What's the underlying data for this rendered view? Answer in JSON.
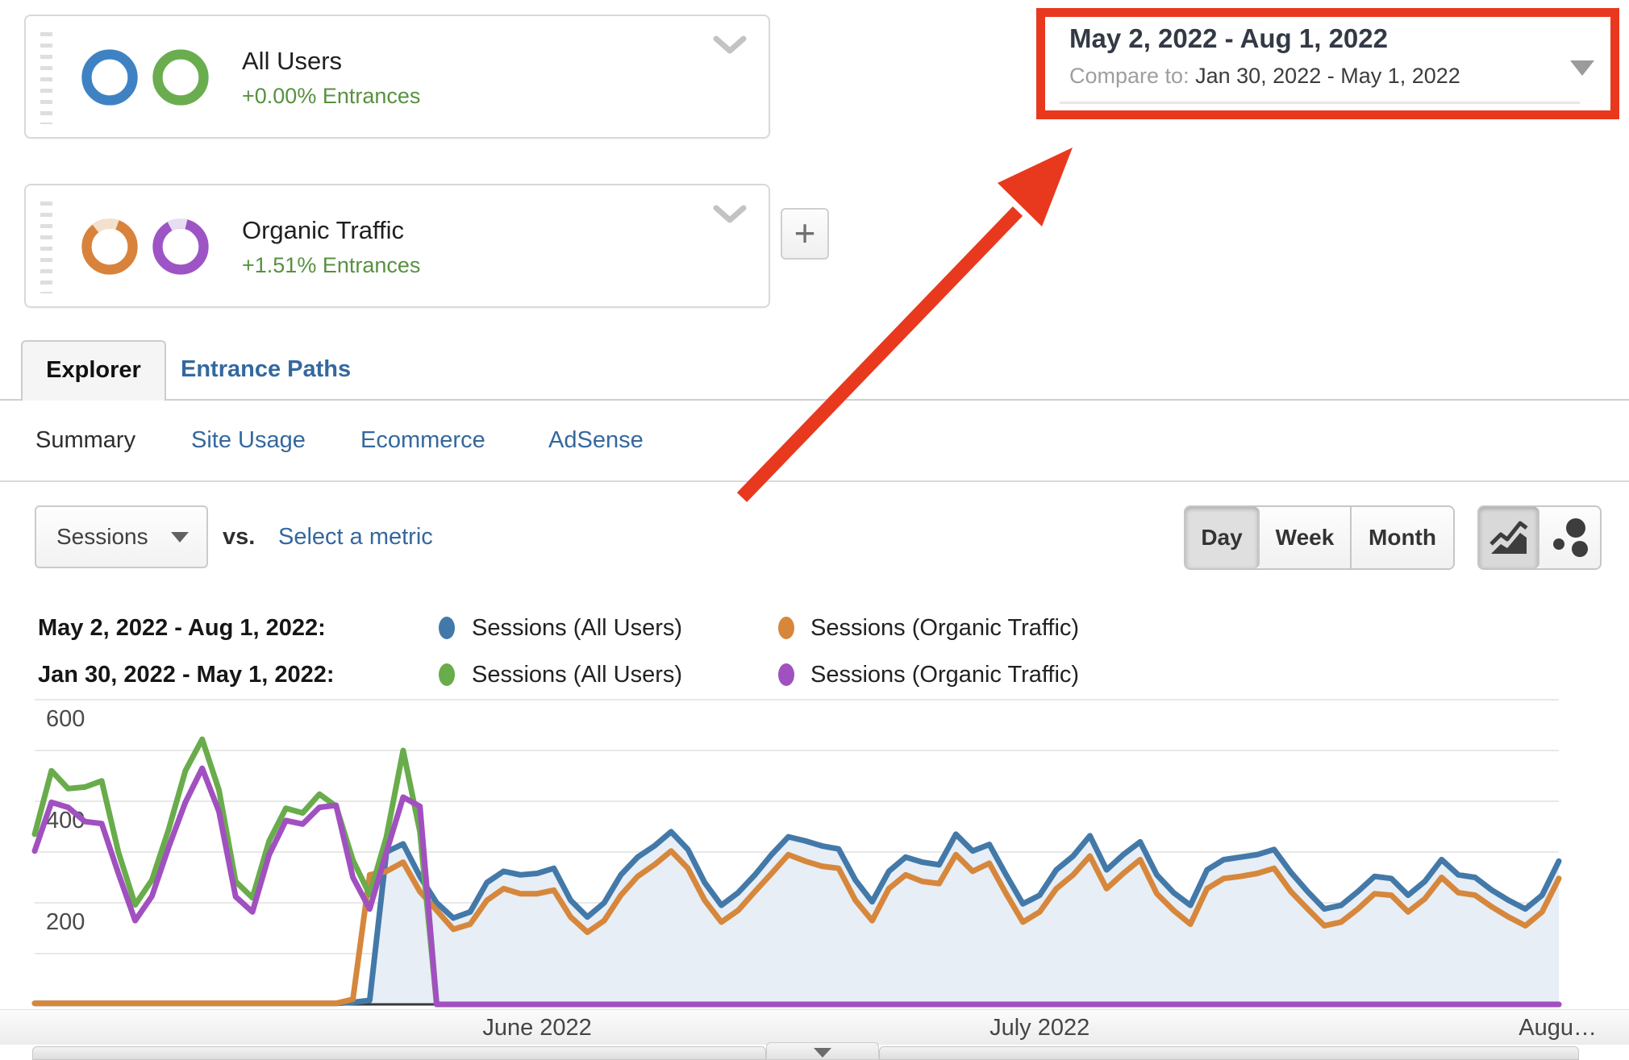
{
  "cards": [
    {
      "title": "All Users",
      "subtitle": "+0.00% Entrances",
      "donuts": [
        {
          "color": "#3e82c4"
        },
        {
          "color": "#6aad4f"
        }
      ]
    },
    {
      "title": "Organic Traffic",
      "subtitle": "+1.51% Entrances",
      "donuts": [
        {
          "color": "#d9823c",
          "segment_color": "#f3e1cd"
        },
        {
          "color": "#9d54c5",
          "segment_color": "#e8def2"
        }
      ]
    }
  ],
  "add_segment_label": "+",
  "date_selector": {
    "primary_range": "May 2, 2022 - Aug 1, 2022",
    "compare_prefix": "Compare to:",
    "compare_range": "Jan 30, 2022 - May 1, 2022"
  },
  "annotations": {
    "box_color": "#e8391f",
    "arrow_color": "#e8391f"
  },
  "tabs": [
    {
      "label": "Explorer",
      "active": true
    },
    {
      "label": "Entrance Paths",
      "active": false
    }
  ],
  "subtabs": [
    {
      "label": "Summary",
      "active": true
    },
    {
      "label": "Site Usage",
      "active": false
    },
    {
      "label": "Ecommerce",
      "active": false
    },
    {
      "label": "AdSense",
      "active": false
    }
  ],
  "metric_controls": {
    "metric_dropdown_value": "Sessions",
    "vs_label": "vs.",
    "select_metric_label": "Select a metric"
  },
  "granularity": [
    {
      "label": "Day",
      "active": true
    },
    {
      "label": "Week",
      "active": false
    },
    {
      "label": "Month",
      "active": false
    }
  ],
  "chart_type_buttons": [
    {
      "icon": "line-chart",
      "active": true
    },
    {
      "icon": "motion-chart",
      "active": false
    }
  ],
  "legend": [
    {
      "range": "May 2, 2022 - Aug 1, 2022:",
      "items": [
        {
          "color": "#4379a8",
          "label": "Sessions (All Users)"
        },
        {
          "color": "#d6873c",
          "label": "Sessions (Organic Traffic)"
        }
      ]
    },
    {
      "range": "Jan 30, 2022 - May 1, 2022:",
      "items": [
        {
          "color": "#69ac4b",
          "label": "Sessions (All Users)"
        },
        {
          "color": "#a150c0",
          "label": "Sessions (Organic Traffic)"
        }
      ]
    }
  ],
  "chart_data": {
    "type": "line",
    "x_unit": "day",
    "x_range": [
      "May 2, 2022",
      "Aug 1, 2022"
    ],
    "x_labels": [
      {
        "label": "June 2022",
        "day_index": 30
      },
      {
        "label": "July 2022",
        "day_index": 60
      },
      {
        "label": "Augu…",
        "day_index": 91
      }
    ],
    "ylim": [
      0,
      600
    ],
    "yticks": [
      200,
      400,
      600
    ],
    "grid": true,
    "series": [
      {
        "name": "Sessions (All Users) — May 2, 2022 - Aug 1, 2022",
        "color": "#4379a8",
        "fill": "#e7eef6",
        "values": [
          2,
          2,
          2,
          2,
          2,
          2,
          2,
          2,
          2,
          2,
          2,
          2,
          2,
          2,
          2,
          2,
          2,
          2,
          2,
          4,
          8,
          300,
          316,
          252,
          200,
          170,
          182,
          240,
          262,
          255,
          258,
          268,
          205,
          172,
          200,
          255,
          290,
          312,
          340,
          305,
          240,
          195,
          220,
          255,
          295,
          330,
          322,
          312,
          306,
          245,
          202,
          262,
          290,
          280,
          275,
          335,
          302,
          315,
          255,
          198,
          215,
          265,
          292,
          332,
          265,
          295,
          320,
          255,
          220,
          195,
          265,
          285,
          290,
          295,
          305,
          260,
          222,
          188,
          195,
          222,
          252,
          248,
          215,
          242,
          285,
          255,
          250,
          225,
          205,
          188,
          215,
          282
        ]
      },
      {
        "name": "Sessions (Organic Traffic) — May 2, 2022 - Aug 1, 2022",
        "color": "#d6873c",
        "values": [
          2,
          2,
          2,
          2,
          2,
          2,
          2,
          2,
          2,
          2,
          2,
          2,
          2,
          2,
          2,
          2,
          2,
          2,
          2,
          10,
          255,
          262,
          280,
          222,
          185,
          148,
          158,
          205,
          228,
          218,
          218,
          225,
          172,
          142,
          165,
          215,
          252,
          275,
          302,
          268,
          205,
          162,
          185,
          222,
          258,
          295,
          282,
          272,
          268,
          205,
          165,
          228,
          255,
          242,
          238,
          295,
          262,
          278,
          218,
          162,
          182,
          228,
          255,
          292,
          228,
          258,
          285,
          218,
          185,
          158,
          228,
          248,
          252,
          258,
          268,
          222,
          188,
          155,
          162,
          188,
          218,
          215,
          182,
          208,
          250,
          220,
          215,
          192,
          172,
          155,
          182,
          248
        ]
      },
      {
        "name": "Sessions (All Users) — Jan 30, 2022 - May 1, 2022",
        "color": "#69ac4b",
        "values": [
          335,
          460,
          425,
          428,
          440,
          300,
          196,
          245,
          345,
          460,
          522,
          422,
          242,
          210,
          322,
          386,
          377,
          414,
          390,
          284,
          216,
          330,
          500,
          340,
          0,
          0,
          0,
          0,
          0,
          0,
          0,
          0,
          0,
          0,
          0,
          0,
          0,
          0,
          0,
          0,
          0,
          0,
          0,
          0,
          0,
          0,
          0,
          0,
          0,
          0,
          0,
          0,
          0,
          0,
          0,
          0,
          0,
          0,
          0,
          0,
          0,
          0,
          0,
          0,
          0,
          0,
          0,
          0,
          0,
          0,
          0,
          0,
          0,
          0,
          0,
          0,
          0,
          0,
          0,
          0,
          0,
          0,
          0,
          0,
          0,
          0,
          0,
          0,
          0,
          0,
          0,
          0
        ]
      },
      {
        "name": "Sessions (Organic Traffic) — Jan 30, 2022 - May 1, 2022",
        "color": "#a150c0",
        "values": [
          302,
          398,
          388,
          360,
          356,
          258,
          165,
          213,
          310,
          398,
          465,
          380,
          212,
          182,
          295,
          362,
          355,
          388,
          392,
          250,
          188,
          300,
          408,
          390,
          0,
          0,
          0,
          0,
          0,
          0,
          0,
          0,
          0,
          0,
          0,
          0,
          0,
          0,
          0,
          0,
          0,
          0,
          0,
          0,
          0,
          0,
          0,
          0,
          0,
          0,
          0,
          0,
          0,
          0,
          0,
          0,
          0,
          0,
          0,
          0,
          0,
          0,
          0,
          0,
          0,
          0,
          0,
          0,
          0,
          0,
          0,
          0,
          0,
          0,
          0,
          0,
          0,
          0,
          0,
          0,
          0,
          0,
          0,
          0,
          0,
          0,
          0,
          0,
          0,
          0,
          0,
          0
        ]
      }
    ]
  },
  "timeline": {
    "collapse_icon": "triangle-down"
  }
}
